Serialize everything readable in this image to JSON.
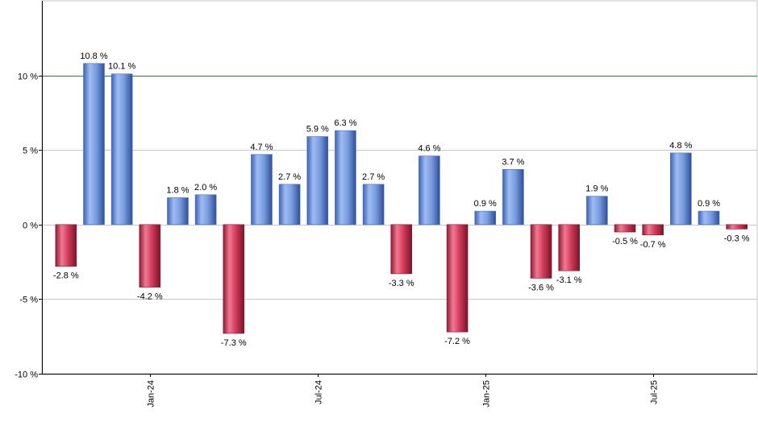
{
  "chart_data": {
    "type": "bar",
    "title": "",
    "xlabel": "",
    "ylabel": "",
    "ylim": [
      -10,
      15
    ],
    "y_ticks": [
      {
        "value": 10,
        "label": "10 %"
      },
      {
        "value": 5,
        "label": "5 %"
      },
      {
        "value": 0,
        "label": "0 %"
      },
      {
        "value": -5,
        "label": "-5 %"
      },
      {
        "value": -10,
        "label": "-10 %"
      }
    ],
    "reference_line": {
      "value": 10,
      "color": "#2e7d32"
    },
    "grid": true,
    "colors": {
      "positive": "#6f95dd",
      "negative": "#c8334f"
    },
    "x_ticks": [
      {
        "index": 3,
        "label": "Jan-24"
      },
      {
        "index": 9,
        "label": "Jul-24"
      },
      {
        "index": 15,
        "label": "Jan-25"
      },
      {
        "index": 21,
        "label": "Jul-25"
      }
    ],
    "values": [
      -2.8,
      10.8,
      10.1,
      -4.2,
      1.8,
      2.0,
      -7.3,
      4.7,
      2.7,
      5.9,
      6.3,
      2.7,
      -3.3,
      4.6,
      -7.2,
      0.9,
      3.7,
      -3.6,
      -3.1,
      1.9,
      -0.5,
      -0.7,
      4.8,
      0.9,
      -0.3
    ],
    "value_labels": [
      "-2.8 %",
      "10.8 %",
      "10.1 %",
      "-4.2 %",
      "1.8 %",
      "2.0 %",
      "-7.3 %",
      "4.7 %",
      "2.7 %",
      "5.9 %",
      "6.3 %",
      "2.7 %",
      "-3.3 %",
      "4.6 %",
      "-7.2 %",
      "0.9 %",
      "3.7 %",
      "-3.6 %",
      "-3.1 %",
      "1.9 %",
      "-0.5 %",
      "-0.7 %",
      "4.8 %",
      "0.9 %",
      "-0.3 %"
    ]
  }
}
